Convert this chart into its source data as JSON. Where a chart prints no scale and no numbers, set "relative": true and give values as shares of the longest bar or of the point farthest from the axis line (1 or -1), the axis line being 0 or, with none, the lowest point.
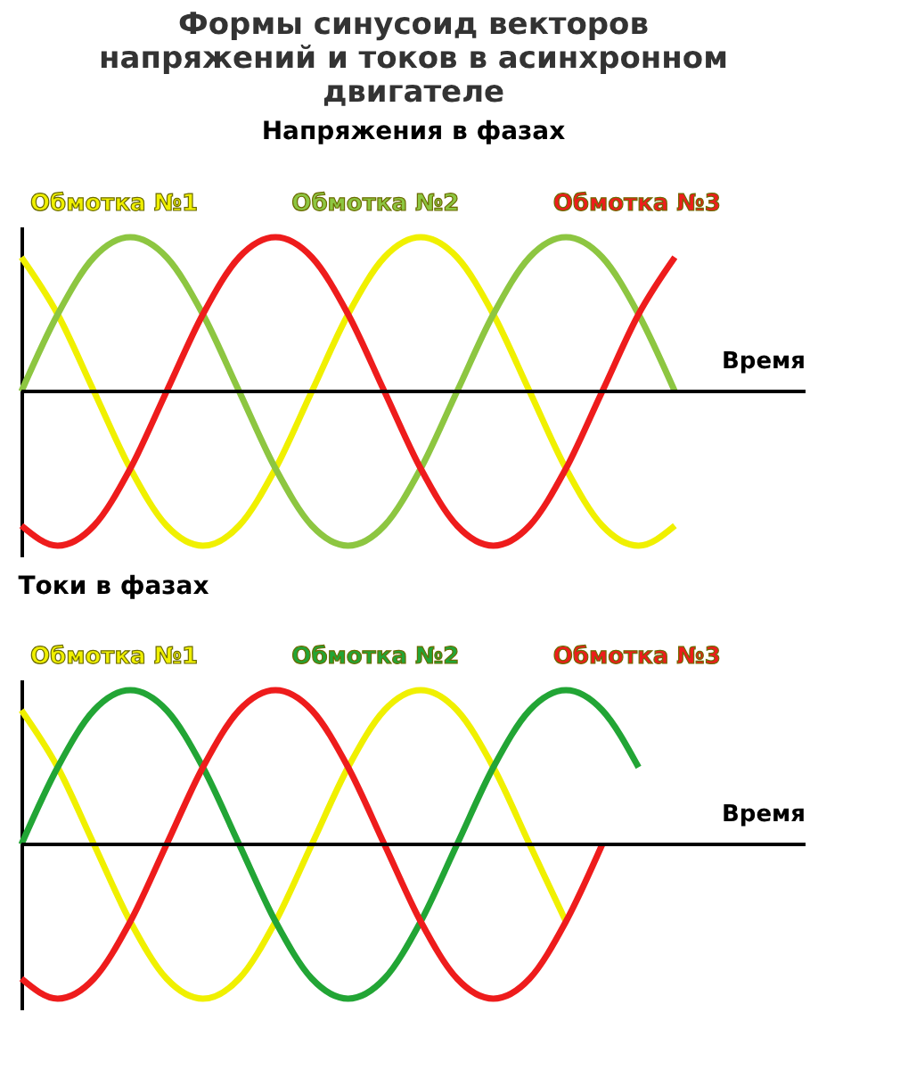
{
  "chart_data": [
    {
      "type": "line",
      "relative": true,
      "title": "Формы синусоид векторов напряжений и токов в асинхронном двигателе",
      "subtitle": "Напряжения в фазах",
      "xlabel": "Время",
      "legend": "top",
      "grid": false,
      "marker": "none",
      "line_style": "solid",
      "categories": [
        null,
        null,
        null,
        null,
        null,
        null,
        null,
        null,
        null,
        null,
        null,
        null,
        null,
        null,
        null,
        null,
        null,
        null,
        null
      ],
      "series": [
        {
          "name": "Обмотка №1",
          "color": "#f0f000",
          "values": [
            0.87,
            0.5,
            0,
            -0.5,
            -0.87,
            -1,
            -0.87,
            -0.5,
            0,
            0.5,
            0.87,
            1,
            0.87,
            0.5,
            0,
            -0.5,
            -0.87,
            -1,
            -0.87
          ]
        },
        {
          "name": "Обмотка №2",
          "color": "#8dc641",
          "values": [
            0,
            0.5,
            0.87,
            1,
            0.87,
            0.5,
            0,
            -0.5,
            -0.87,
            -1,
            -0.87,
            -0.5,
            0,
            0.5,
            0.87,
            1,
            0.87,
            0.5,
            0
          ]
        },
        {
          "name": "Обмотка №3",
          "color": "#ee1c1c",
          "values": [
            -0.87,
            -1,
            -0.87,
            -0.5,
            0,
            0.5,
            0.87,
            1,
            0.87,
            0.5,
            0,
            -0.5,
            -0.87,
            -1,
            -0.87,
            -0.5,
            0,
            0.5,
            0.87
          ]
        }
      ]
    },
    {
      "type": "line",
      "relative": true,
      "title": "Токи в фазах",
      "xlabel": "Время",
      "legend": "top",
      "grid": false,
      "marker": "none",
      "line_style": "solid",
      "categories": [
        null,
        null,
        null,
        null,
        null,
        null,
        null,
        null,
        null,
        null,
        null,
        null,
        null,
        null,
        null,
        null,
        null,
        null,
        null
      ],
      "series": [
        {
          "name": "Обмотка №1",
          "color": "#f0f000",
          "values": [
            0.87,
            0.5,
            0,
            -0.5,
            -0.87,
            -1,
            -0.87,
            -0.5,
            0,
            0.5,
            0.87,
            1,
            0.87,
            0.5,
            0,
            -0.5,
            null,
            null,
            null
          ]
        },
        {
          "name": "Обмотка №2",
          "color": "#22a535",
          "values": [
            0,
            0.5,
            0.87,
            1,
            0.87,
            0.5,
            0,
            -0.5,
            -0.87,
            -1,
            -0.87,
            -0.5,
            0,
            0.5,
            0.87,
            1,
            0.87,
            0.5,
            null
          ]
        },
        {
          "name": "Обмотка №3",
          "color": "#ee1c1c",
          "values": [
            -0.87,
            -1,
            -0.87,
            -0.5,
            0,
            0.5,
            0.87,
            1,
            0.87,
            0.5,
            0,
            -0.5,
            -0.87,
            -1,
            -0.87,
            -0.5,
            0,
            null,
            null
          ]
        }
      ]
    }
  ]
}
